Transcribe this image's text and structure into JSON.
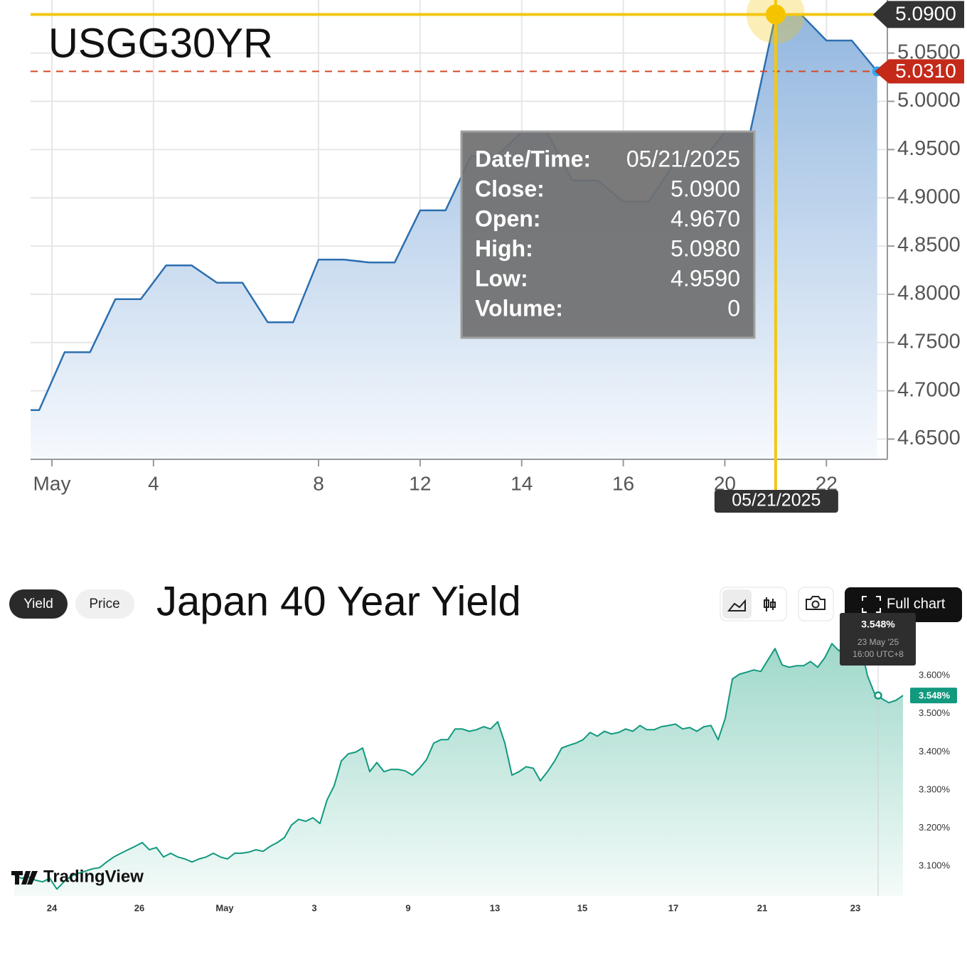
{
  "chart_data": [
    {
      "type": "area",
      "title": "USGG30YR",
      "color": "#2c6fb0",
      "grid": true,
      "x": [
        -0.67,
        -0.5,
        0,
        0.5,
        1,
        1.5,
        2,
        2.5,
        3,
        3.5,
        4,
        4.5,
        5,
        5.5,
        6,
        6.5,
        7,
        7.5,
        8,
        8.5,
        9,
        9.5,
        10,
        10.5,
        11,
        11.5,
        12,
        12.5,
        13,
        13.5,
        14,
        14.5,
        15,
        15.5,
        16
      ],
      "values": [
        4.68,
        4.68,
        4.74,
        4.74,
        4.795,
        4.795,
        4.83,
        4.83,
        4.812,
        4.812,
        4.771,
        4.771,
        4.836,
        4.836,
        4.833,
        4.833,
        4.887,
        4.887,
        4.943,
        4.943,
        4.968,
        4.968,
        4.918,
        4.918,
        4.896,
        4.896,
        4.935,
        4.935,
        4.968,
        4.968,
        5.09,
        5.09,
        5.063,
        5.063,
        5.031
      ],
      "xlim": [
        -0.67,
        16.2
      ],
      "ylim": [
        4.629,
        5.105
      ],
      "xticks": [
        {
          "value": -0.25,
          "label": "May"
        },
        {
          "value": 1.75,
          "label": "4"
        },
        {
          "value": 5,
          "label": "8"
        },
        {
          "value": 7,
          "label": "12"
        },
        {
          "value": 9,
          "label": "14"
        },
        {
          "value": 11,
          "label": "16"
        },
        {
          "value": 13,
          "label": "20"
        },
        {
          "value": 15,
          "label": "22"
        }
      ],
      "yticks": [
        {
          "value": 4.65,
          "label": "4.6500"
        },
        {
          "value": 4.7,
          "label": "4.7000"
        },
        {
          "value": 4.75,
          "label": "4.7500"
        },
        {
          "value": 4.8,
          "label": "4.8000"
        },
        {
          "value": 4.85,
          "label": "4.8500"
        },
        {
          "value": 4.9,
          "label": "4.9000"
        },
        {
          "value": 4.95,
          "label": "4.9500"
        },
        {
          "value": 5.0,
          "label": "5.0000"
        },
        {
          "value": 5.05,
          "label": "5.0500"
        }
      ],
      "crosshair": {
        "x": 14,
        "value": 5.09,
        "label": "5.0900",
        "date": "05/21/2025"
      },
      "last": {
        "value": 5.031,
        "label": "5.0310"
      },
      "tooltip": [
        [
          "Date/Time:",
          "05/21/2025"
        ],
        [
          "Close:",
          "5.0900"
        ],
        [
          "Open:",
          "4.9670"
        ],
        [
          "High:",
          "5.0980"
        ],
        [
          "Low:",
          "4.9590"
        ],
        [
          "Volume:",
          "0"
        ]
      ]
    },
    {
      "type": "area",
      "title": "Japan 40 Year Yield",
      "color": "#12997f",
      "grid": false,
      "buttons": [
        "Yield",
        "Price",
        "Full chart"
      ],
      "logo": "TradingView",
      "x": [
        0,
        1,
        2,
        3,
        4,
        5,
        6,
        7,
        8,
        9,
        10,
        11,
        12,
        13,
        14,
        15,
        16,
        17,
        18,
        19,
        20,
        21,
        22,
        23,
        24,
        25,
        26,
        27,
        28,
        29,
        30,
        31,
        32,
        33,
        34,
        35,
        36,
        37,
        38,
        39,
        40,
        41,
        42,
        43,
        44,
        45,
        46,
        47,
        48,
        49,
        50,
        51,
        52,
        53,
        54,
        55,
        56,
        57,
        58,
        59,
        60,
        61,
        62,
        63,
        64,
        65,
        66,
        67,
        68,
        69,
        70,
        71,
        72,
        73,
        74,
        75,
        76,
        77,
        78,
        79,
        80,
        81,
        82,
        83,
        84,
        85,
        86,
        87,
        88,
        89,
        90,
        91,
        92,
        93,
        94,
        95,
        96,
        97,
        98,
        99,
        100,
        101,
        102,
        103,
        104,
        105,
        106,
        107,
        108,
        109,
        110,
        111,
        112,
        113,
        114,
        115,
        116,
        117,
        118,
        119,
        120,
        121,
        122,
        123,
        124,
        125
      ],
      "values": [
        3.078,
        3.068,
        3.072,
        3.063,
        3.059,
        3.068,
        3.04,
        3.059,
        3.074,
        3.081,
        3.087,
        3.093,
        3.096,
        3.111,
        3.124,
        3.134,
        3.143,
        3.152,
        3.162,
        3.143,
        3.149,
        3.124,
        3.134,
        3.124,
        3.119,
        3.111,
        3.119,
        3.124,
        3.134,
        3.124,
        3.119,
        3.134,
        3.134,
        3.137,
        3.143,
        3.139,
        3.152,
        3.162,
        3.175,
        3.208,
        3.223,
        3.218,
        3.227,
        3.212,
        3.274,
        3.311,
        3.376,
        3.395,
        3.399,
        3.41,
        3.348,
        3.372,
        3.348,
        3.354,
        3.354,
        3.35,
        3.339,
        3.357,
        3.38,
        3.423,
        3.432,
        3.432,
        3.46,
        3.46,
        3.454,
        3.458,
        3.466,
        3.46,
        3.479,
        3.423,
        3.339,
        3.348,
        3.361,
        3.357,
        3.324,
        3.348,
        3.376,
        3.41,
        3.417,
        3.423,
        3.432,
        3.451,
        3.441,
        3.454,
        3.447,
        3.451,
        3.46,
        3.454,
        3.469,
        3.458,
        3.458,
        3.466,
        3.469,
        3.473,
        3.46,
        3.464,
        3.454,
        3.466,
        3.469,
        3.432,
        3.488,
        3.591,
        3.604,
        3.609,
        3.615,
        3.611,
        3.641,
        3.671,
        3.628,
        3.622,
        3.626,
        3.626,
        3.637,
        3.622,
        3.647,
        3.684,
        3.665,
        3.684,
        3.675,
        3.684,
        3.6,
        3.553,
        3.54,
        3.529,
        3.535,
        3.548
      ],
      "xlim": [
        -0.8,
        125
      ],
      "ylim": [
        3.022,
        3.731
      ],
      "xticks": [
        {
          "value": 5.3,
          "label": "24"
        },
        {
          "value": 17.6,
          "label": "26"
        },
        {
          "value": 29.6,
          "label": "May"
        },
        {
          "value": 42.2,
          "label": "3"
        },
        {
          "value": 55.4,
          "label": "9"
        },
        {
          "value": 67.6,
          "label": "13"
        },
        {
          "value": 79.9,
          "label": "15"
        },
        {
          "value": 92.7,
          "label": "17"
        },
        {
          "value": 105.2,
          "label": "21"
        },
        {
          "value": 118.3,
          "label": "23"
        }
      ],
      "yticks": [
        {
          "value": 3.1,
          "label": "3.100%"
        },
        {
          "value": 3.2,
          "label": "3.200%"
        },
        {
          "value": 3.3,
          "label": "3.300%"
        },
        {
          "value": 3.4,
          "label": "3.400%"
        },
        {
          "value": 3.5,
          "label": "3.500%"
        },
        {
          "value": 3.6,
          "label": "3.600%"
        }
      ],
      "crosshair": {
        "x": 121.5,
        "value": 3.548,
        "label": "3.548%",
        "date": "23 May '25",
        "time": "16:00 UTC+8"
      },
      "last": {
        "value": 3.548,
        "label": "3.548%"
      }
    }
  ]
}
